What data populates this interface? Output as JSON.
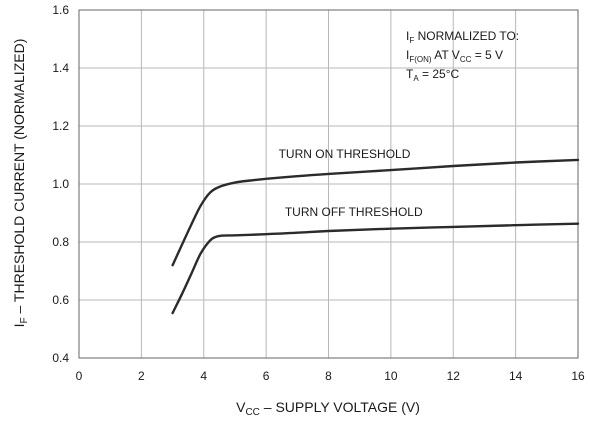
{
  "chart_data": {
    "type": "line",
    "xlabel": {
      "main": "V",
      "sub": "CC",
      "rest": " – SUPPLY VOLTAGE (V)"
    },
    "ylabel": {
      "main": "I",
      "sub": "F",
      "rest": " – THRESHOLD CURRENT (NORMALIZED)"
    },
    "xlim": [
      0,
      16
    ],
    "ylim": [
      0.4,
      1.6
    ],
    "xticks": [
      0,
      2,
      4,
      6,
      8,
      10,
      12,
      14,
      16
    ],
    "yticks": [
      0.4,
      0.6,
      0.8,
      1.0,
      1.2,
      1.4,
      1.6
    ],
    "xtick_labels": [
      "0",
      "2",
      "4",
      "6",
      "8",
      "10",
      "12",
      "14",
      "16"
    ],
    "ytick_labels": [
      "0.4",
      "0.6",
      "0.8",
      "1.0",
      "1.2",
      "1.4",
      "1.6"
    ],
    "grid": true,
    "series": [
      {
        "name": "TURN ON THRESHOLD",
        "x": [
          3.0,
          3.3,
          3.6,
          3.9,
          4.2,
          4.5,
          5.0,
          5.5,
          6.0,
          7.0,
          8.0,
          10.0,
          12.0,
          14.0,
          16.0
        ],
        "y": [
          0.72,
          0.79,
          0.86,
          0.925,
          0.97,
          0.99,
          1.005,
          1.012,
          1.018,
          1.027,
          1.035,
          1.048,
          1.062,
          1.074,
          1.083
        ]
      },
      {
        "name": "TURN OFF THRESHOLD",
        "x": [
          3.0,
          3.3,
          3.6,
          3.9,
          4.2,
          4.4,
          4.6,
          5.0,
          5.5,
          6.0,
          7.0,
          8.0,
          10.0,
          12.0,
          14.0,
          16.0
        ],
        "y": [
          0.555,
          0.62,
          0.69,
          0.76,
          0.805,
          0.818,
          0.822,
          0.823,
          0.825,
          0.827,
          0.832,
          0.838,
          0.846,
          0.852,
          0.858,
          0.863
        ]
      }
    ],
    "annotations": [
      {
        "main": "I",
        "sub": "F",
        "rest": " NORMALIZED TO:"
      },
      {
        "main": "I",
        "sub": "F(ON)",
        "mid": " AT V",
        "sub2": "CC",
        "rest": " = 5 V"
      },
      {
        "main": "T",
        "sub": "A",
        "rest": " = 25°C"
      }
    ]
  },
  "colors": {
    "curve": "#2b2b2b",
    "grid": "#b8b8b8",
    "axis": "#666666",
    "text": "#1a1a1a"
  }
}
